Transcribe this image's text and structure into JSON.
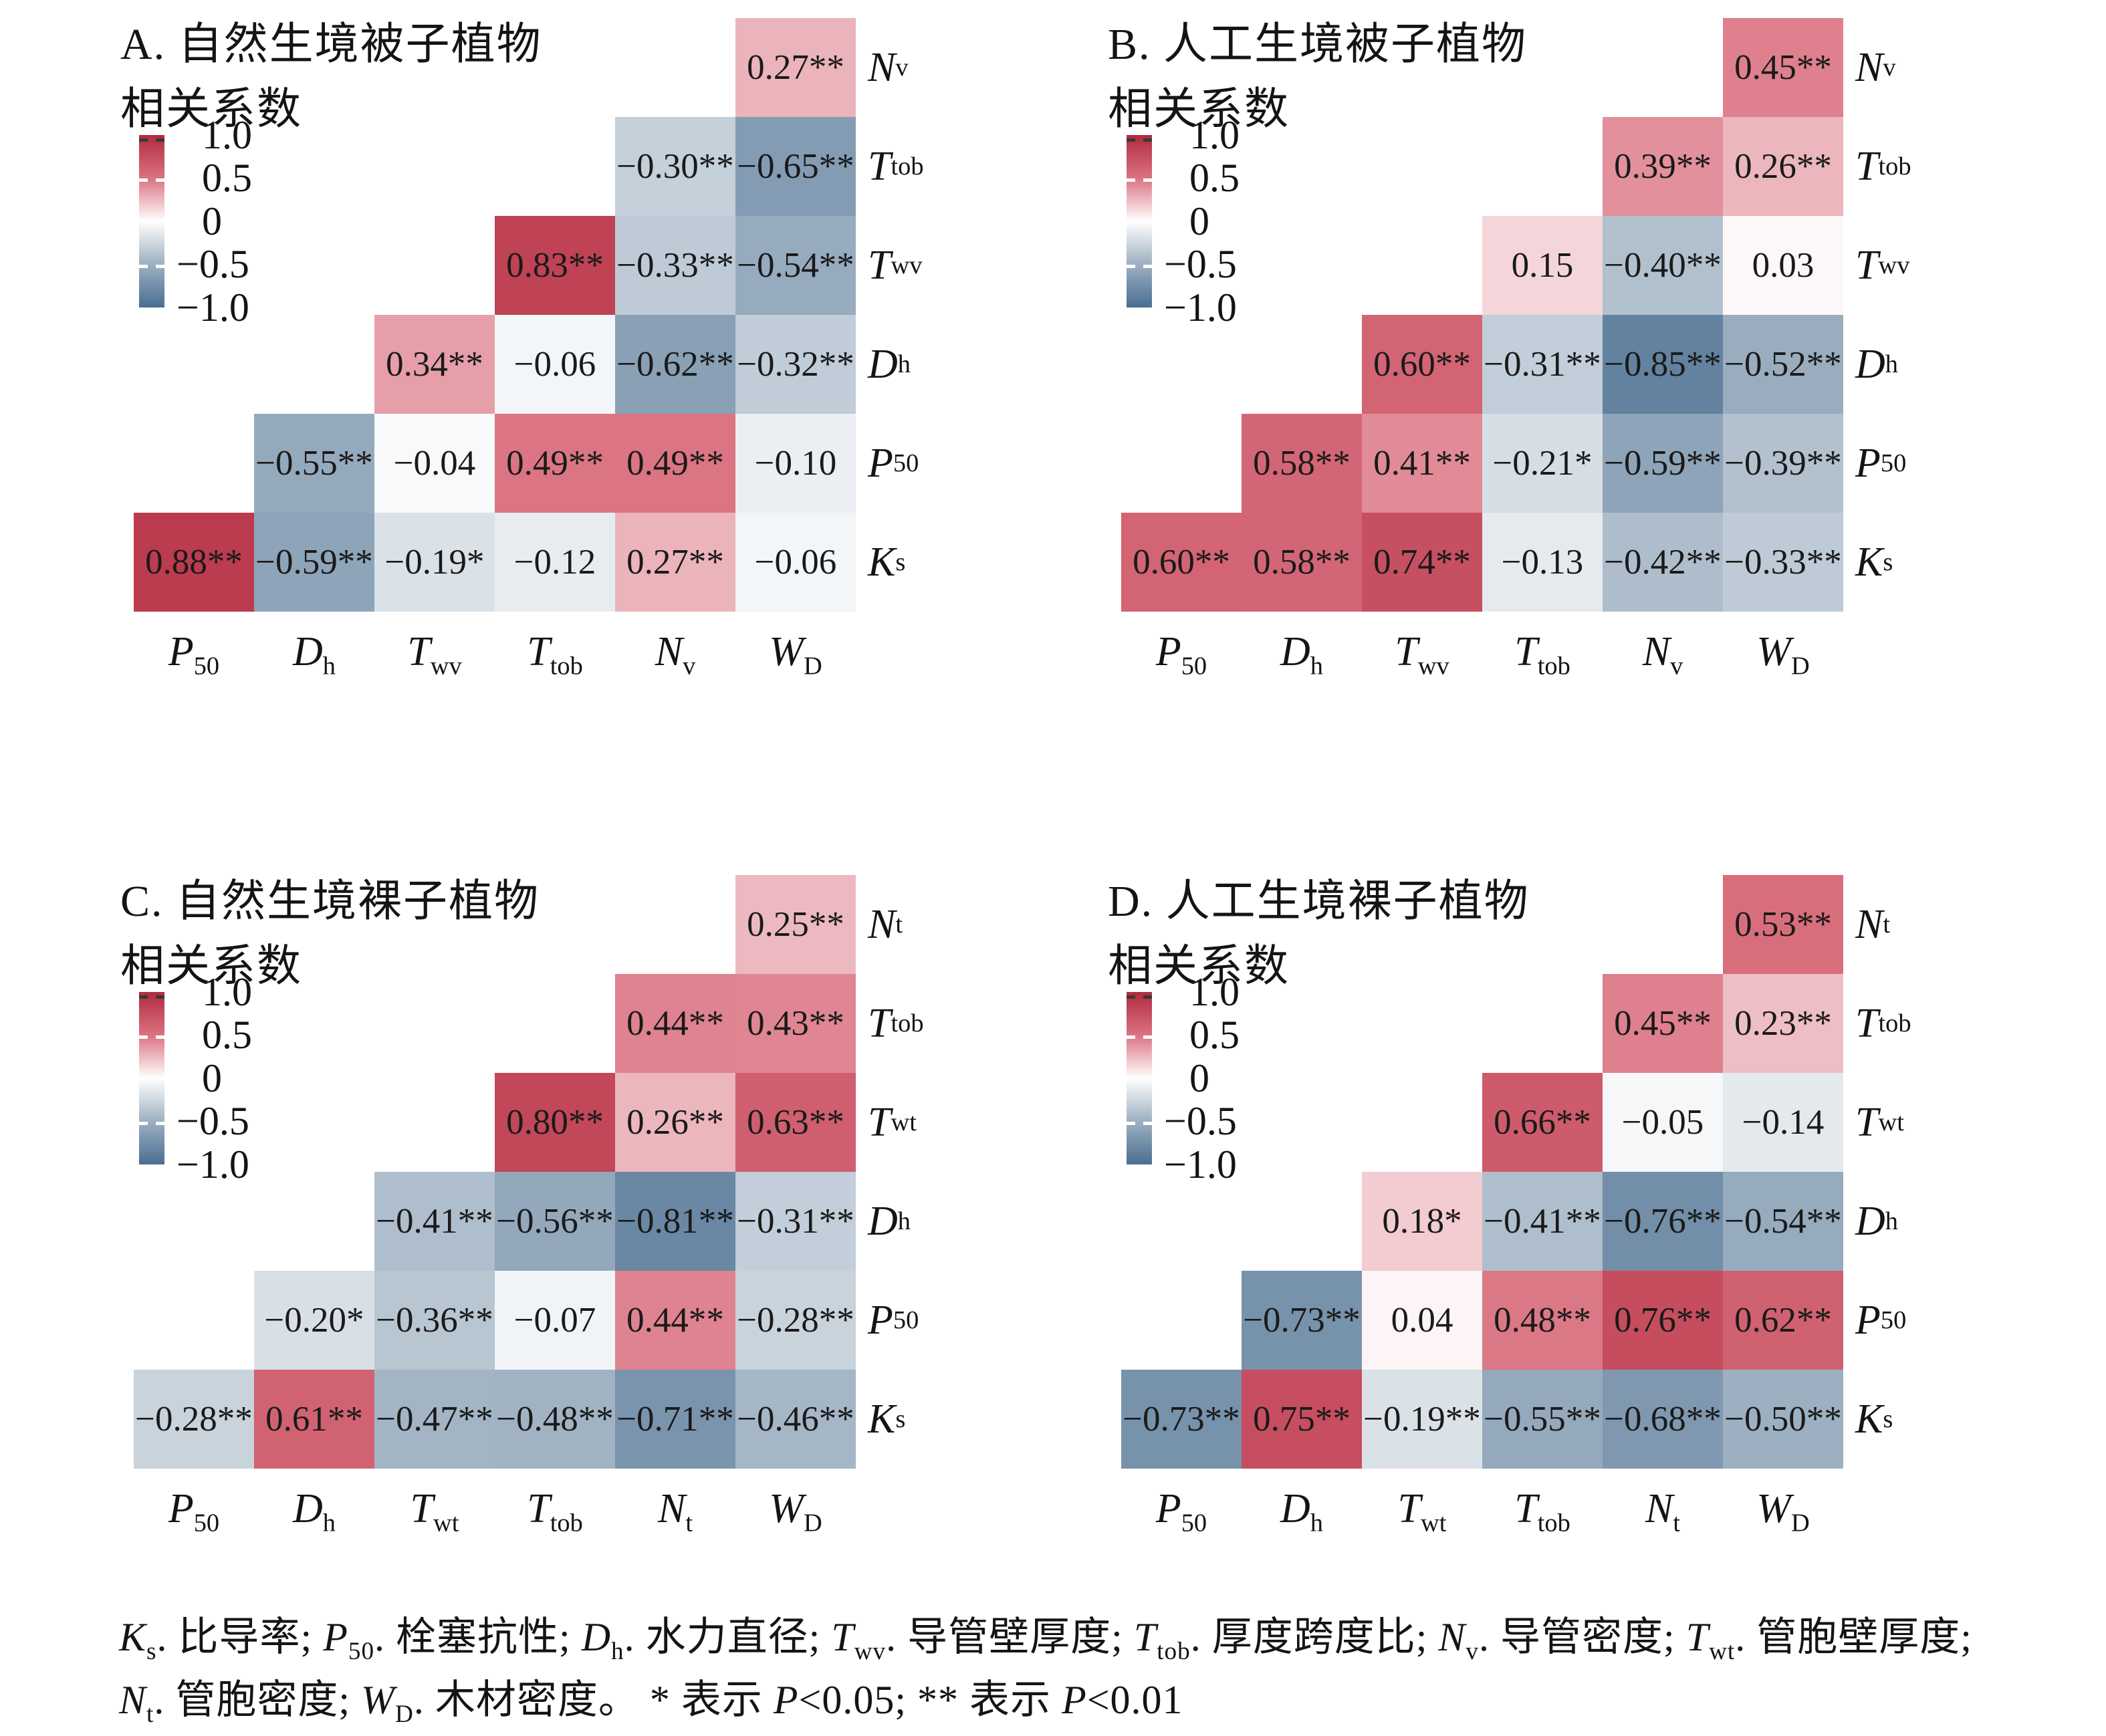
{
  "page": {
    "background": "#ffffff"
  },
  "colorscale": {
    "stops": [
      {
        "value": -1.0,
        "color": "#4a6e91"
      },
      {
        "value": -0.5,
        "color": "#9db0c1"
      },
      {
        "value": 0.0,
        "color": "#ffffff"
      },
      {
        "value": 0.5,
        "color": "#da7280"
      },
      {
        "value": 1.0,
        "color": "#b12a3f"
      }
    ]
  },
  "legend": {
    "title": "相关系数",
    "ticks": [
      "1.0",
      "0.5",
      "0",
      "−0.5",
      "−1.0"
    ]
  },
  "footnote": {
    "line1": [
      {
        "b": "K",
        "s": "s"
      },
      {
        "t": ". 比导率; "
      },
      {
        "b": "P",
        "s": "50"
      },
      {
        "t": ". 栓塞抗性; "
      },
      {
        "b": "D",
        "s": "h"
      },
      {
        "t": ". 水力直径; "
      },
      {
        "b": "T",
        "s": "wv"
      },
      {
        "t": ". 导管壁厚度; "
      },
      {
        "b": "T",
        "s": "tob"
      },
      {
        "t": ". 厚度跨度比; "
      },
      {
        "b": "N",
        "s": "v"
      },
      {
        "t": ". 导管密度; "
      },
      {
        "b": "T",
        "s": "wt"
      },
      {
        "t": ". 管胞壁厚度;"
      }
    ],
    "line2": [
      {
        "b": "N",
        "s": "t"
      },
      {
        "t": ". 管胞密度; "
      },
      {
        "b": "W",
        "s": "D"
      },
      {
        "t": ". 木材密度。 * 表示 "
      },
      {
        "i": "P"
      },
      {
        "t": "<0.05; ** 表示 "
      },
      {
        "i": "P"
      },
      {
        "t": "<0.01"
      }
    ]
  },
  "chart_data": [
    {
      "type": "heatmap",
      "id": "A",
      "title": "A. 自然生境被子植物",
      "legend_title": "相关系数",
      "value_range": [
        -1,
        1
      ],
      "legend_position": "upper-left",
      "columns": [
        {
          "name": "P50",
          "b": "P",
          "s": "50"
        },
        {
          "name": "Dh",
          "b": "D",
          "s": "h"
        },
        {
          "name": "Twv",
          "b": "T",
          "s": "wv"
        },
        {
          "name": "Ttob",
          "b": "T",
          "s": "tob"
        },
        {
          "name": "Nv",
          "b": "N",
          "s": "v"
        },
        {
          "name": "WD",
          "b": "W",
          "s": "D"
        }
      ],
      "rows": [
        {
          "label": {
            "name": "Nv",
            "b": "N",
            "s": "v"
          },
          "cells": [
            null,
            null,
            null,
            null,
            null,
            {
              "v": 0.27,
              "sig": "**"
            }
          ]
        },
        {
          "label": {
            "name": "Ttob",
            "b": "T",
            "s": "tob"
          },
          "cells": [
            null,
            null,
            null,
            null,
            {
              "v": -0.3,
              "sig": "**"
            },
            {
              "v": -0.65,
              "sig": "**"
            }
          ]
        },
        {
          "label": {
            "name": "Twv",
            "b": "T",
            "s": "wv"
          },
          "cells": [
            null,
            null,
            null,
            {
              "v": 0.83,
              "sig": "**"
            },
            {
              "v": -0.33,
              "sig": "**"
            },
            {
              "v": -0.54,
              "sig": "**"
            }
          ]
        },
        {
          "label": {
            "name": "Dh",
            "b": "D",
            "s": "h"
          },
          "cells": [
            null,
            null,
            {
              "v": 0.34,
              "sig": "**"
            },
            {
              "v": -0.06,
              "sig": ""
            },
            {
              "v": -0.62,
              "sig": "**"
            },
            {
              "v": -0.32,
              "sig": "**"
            }
          ]
        },
        {
          "label": {
            "name": "P50",
            "b": "P",
            "s": "50"
          },
          "cells": [
            null,
            {
              "v": -0.55,
              "sig": "**"
            },
            {
              "v": -0.04,
              "sig": ""
            },
            {
              "v": 0.49,
              "sig": "**"
            },
            {
              "v": 0.49,
              "sig": "**"
            },
            {
              "v": -0.1,
              "sig": ""
            }
          ]
        },
        {
          "label": {
            "name": "Ks",
            "b": "K",
            "s": "s"
          },
          "cells": [
            {
              "v": 0.88,
              "sig": "**"
            },
            {
              "v": -0.59,
              "sig": "**"
            },
            {
              "v": -0.19,
              "sig": "*"
            },
            {
              "v": -0.12,
              "sig": ""
            },
            {
              "v": 0.27,
              "sig": "**"
            },
            {
              "v": -0.06,
              "sig": ""
            }
          ]
        }
      ]
    },
    {
      "type": "heatmap",
      "id": "B",
      "title": "B. 人工生境被子植物",
      "legend_title": "相关系数",
      "value_range": [
        -1,
        1
      ],
      "legend_position": "upper-left",
      "columns": [
        {
          "name": "P50",
          "b": "P",
          "s": "50"
        },
        {
          "name": "Dh",
          "b": "D",
          "s": "h"
        },
        {
          "name": "Twv",
          "b": "T",
          "s": "wv"
        },
        {
          "name": "Ttob",
          "b": "T",
          "s": "tob"
        },
        {
          "name": "Nv",
          "b": "N",
          "s": "v"
        },
        {
          "name": "WD",
          "b": "W",
          "s": "D"
        }
      ],
      "rows": [
        {
          "label": {
            "name": "Nv",
            "b": "N",
            "s": "v"
          },
          "cells": [
            null,
            null,
            null,
            null,
            null,
            {
              "v": 0.45,
              "sig": "**"
            }
          ]
        },
        {
          "label": {
            "name": "Ttob",
            "b": "T",
            "s": "tob"
          },
          "cells": [
            null,
            null,
            null,
            null,
            {
              "v": 0.39,
              "sig": "**"
            },
            {
              "v": 0.26,
              "sig": "**"
            }
          ]
        },
        {
          "label": {
            "name": "Twv",
            "b": "T",
            "s": "wv"
          },
          "cells": [
            null,
            null,
            null,
            {
              "v": 0.15,
              "sig": ""
            },
            {
              "v": -0.4,
              "sig": "**"
            },
            {
              "v": 0.03,
              "sig": ""
            }
          ]
        },
        {
          "label": {
            "name": "Dh",
            "b": "D",
            "s": "h"
          },
          "cells": [
            null,
            null,
            {
              "v": 0.6,
              "sig": "**"
            },
            {
              "v": -0.31,
              "sig": "**"
            },
            {
              "v": -0.85,
              "sig": "**"
            },
            {
              "v": -0.52,
              "sig": "**"
            }
          ]
        },
        {
          "label": {
            "name": "P50",
            "b": "P",
            "s": "50"
          },
          "cells": [
            null,
            {
              "v": 0.58,
              "sig": "**"
            },
            {
              "v": 0.41,
              "sig": "**"
            },
            {
              "v": -0.21,
              "sig": "*"
            },
            {
              "v": -0.59,
              "sig": "**"
            },
            {
              "v": -0.39,
              "sig": "**"
            }
          ]
        },
        {
          "label": {
            "name": "Ks",
            "b": "K",
            "s": "s"
          },
          "cells": [
            {
              "v": 0.6,
              "sig": "**"
            },
            {
              "v": 0.58,
              "sig": "**"
            },
            {
              "v": 0.74,
              "sig": "**"
            },
            {
              "v": -0.13,
              "sig": ""
            },
            {
              "v": -0.42,
              "sig": "**"
            },
            {
              "v": -0.33,
              "sig": "**"
            }
          ]
        }
      ]
    },
    {
      "type": "heatmap",
      "id": "C",
      "title": "C. 自然生境裸子植物",
      "legend_title": "相关系数",
      "value_range": [
        -1,
        1
      ],
      "legend_position": "upper-left",
      "columns": [
        {
          "name": "P50",
          "b": "P",
          "s": "50"
        },
        {
          "name": "Dh",
          "b": "D",
          "s": "h"
        },
        {
          "name": "Twt",
          "b": "T",
          "s": "wt"
        },
        {
          "name": "Ttob",
          "b": "T",
          "s": "tob"
        },
        {
          "name": "Nt",
          "b": "N",
          "s": "t"
        },
        {
          "name": "WD",
          "b": "W",
          "s": "D"
        }
      ],
      "rows": [
        {
          "label": {
            "name": "Nt",
            "b": "N",
            "s": "t"
          },
          "cells": [
            null,
            null,
            null,
            null,
            null,
            {
              "v": 0.25,
              "sig": "**"
            }
          ]
        },
        {
          "label": {
            "name": "Ttob",
            "b": "T",
            "s": "tob"
          },
          "cells": [
            null,
            null,
            null,
            null,
            {
              "v": 0.44,
              "sig": "**"
            },
            {
              "v": 0.43,
              "sig": "**"
            }
          ]
        },
        {
          "label": {
            "name": "Twt",
            "b": "T",
            "s": "wt"
          },
          "cells": [
            null,
            null,
            null,
            {
              "v": 0.8,
              "sig": "**"
            },
            {
              "v": 0.26,
              "sig": "**"
            },
            {
              "v": 0.63,
              "sig": "**"
            }
          ]
        },
        {
          "label": {
            "name": "Dh",
            "b": "D",
            "s": "h"
          },
          "cells": [
            null,
            null,
            {
              "v": -0.41,
              "sig": "**"
            },
            {
              "v": -0.56,
              "sig": "**"
            },
            {
              "v": -0.81,
              "sig": "**"
            },
            {
              "v": -0.31,
              "sig": "**"
            }
          ]
        },
        {
          "label": {
            "name": "P50",
            "b": "P",
            "s": "50"
          },
          "cells": [
            null,
            {
              "v": -0.2,
              "sig": "*"
            },
            {
              "v": -0.36,
              "sig": "**"
            },
            {
              "v": -0.07,
              "sig": ""
            },
            {
              "v": 0.44,
              "sig": "**"
            },
            {
              "v": -0.28,
              "sig": "**"
            }
          ]
        },
        {
          "label": {
            "name": "Ks",
            "b": "K",
            "s": "s"
          },
          "cells": [
            {
              "v": -0.28,
              "sig": "**"
            },
            {
              "v": 0.61,
              "sig": "**"
            },
            {
              "v": -0.47,
              "sig": "**"
            },
            {
              "v": -0.48,
              "sig": "**"
            },
            {
              "v": -0.71,
              "sig": "**"
            },
            {
              "v": -0.46,
              "sig": "**"
            }
          ]
        }
      ]
    },
    {
      "type": "heatmap",
      "id": "D",
      "title": "D. 人工生境裸子植物",
      "legend_title": "相关系数",
      "value_range": [
        -1,
        1
      ],
      "legend_position": "upper-left",
      "columns": [
        {
          "name": "P50",
          "b": "P",
          "s": "50"
        },
        {
          "name": "Dh",
          "b": "D",
          "s": "h"
        },
        {
          "name": "Twt",
          "b": "T",
          "s": "wt"
        },
        {
          "name": "Ttob",
          "b": "T",
          "s": "tob"
        },
        {
          "name": "Nt",
          "b": "N",
          "s": "t"
        },
        {
          "name": "WD",
          "b": "W",
          "s": "D"
        }
      ],
      "rows": [
        {
          "label": {
            "name": "Nt",
            "b": "N",
            "s": "t"
          },
          "cells": [
            null,
            null,
            null,
            null,
            null,
            {
              "v": 0.53,
              "sig": "**"
            }
          ]
        },
        {
          "label": {
            "name": "Ttob",
            "b": "T",
            "s": "tob"
          },
          "cells": [
            null,
            null,
            null,
            null,
            {
              "v": 0.45,
              "sig": "**"
            },
            {
              "v": 0.23,
              "sig": "**"
            }
          ]
        },
        {
          "label": {
            "name": "Twt",
            "b": "T",
            "s": "wt"
          },
          "cells": [
            null,
            null,
            null,
            {
              "v": 0.66,
              "sig": "**"
            },
            {
              "v": -0.05,
              "sig": ""
            },
            {
              "v": -0.14,
              "sig": ""
            }
          ]
        },
        {
          "label": {
            "name": "Dh",
            "b": "D",
            "s": "h"
          },
          "cells": [
            null,
            null,
            {
              "v": 0.18,
              "sig": "*"
            },
            {
              "v": -0.41,
              "sig": "**"
            },
            {
              "v": -0.76,
              "sig": "**"
            },
            {
              "v": -0.54,
              "sig": "**"
            }
          ]
        },
        {
          "label": {
            "name": "P50",
            "b": "P",
            "s": "50"
          },
          "cells": [
            null,
            {
              "v": -0.73,
              "sig": "**"
            },
            {
              "v": 0.04,
              "sig": ""
            },
            {
              "v": 0.48,
              "sig": "**"
            },
            {
              "v": 0.76,
              "sig": "**"
            },
            {
              "v": 0.62,
              "sig": "**"
            }
          ]
        },
        {
          "label": {
            "name": "Ks",
            "b": "K",
            "s": "s"
          },
          "cells": [
            {
              "v": -0.73,
              "sig": "**"
            },
            {
              "v": 0.75,
              "sig": "**"
            },
            {
              "v": -0.19,
              "sig": "**"
            },
            {
              "v": -0.55,
              "sig": "**"
            },
            {
              "v": -0.68,
              "sig": "**"
            },
            {
              "v": -0.5,
              "sig": "**"
            }
          ]
        }
      ]
    }
  ]
}
